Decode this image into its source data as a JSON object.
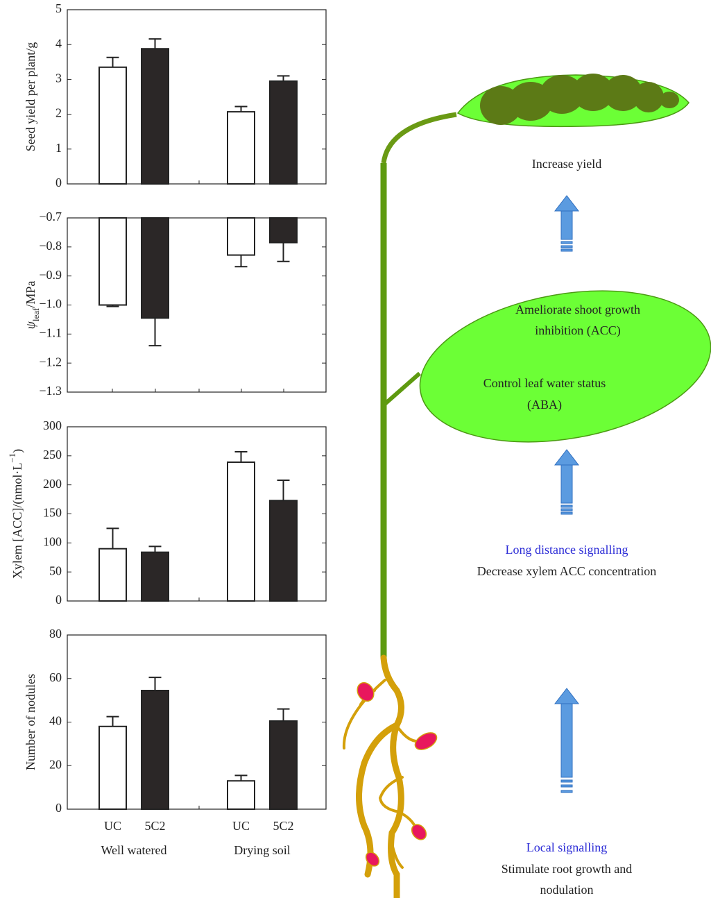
{
  "chart_data": [
    {
      "type": "bar",
      "ylabel": [
        {
          "text": "Seed yield per plant/g"
        }
      ],
      "ylim": [
        0,
        5
      ],
      "yticks": [
        0,
        1,
        2,
        3,
        4,
        5
      ],
      "series": [
        {
          "color": "#ffffff",
          "values": [
            3.35,
            2.07
          ],
          "errors": [
            0.28,
            0.15
          ]
        },
        {
          "color": "#2b2727",
          "values": [
            3.88,
            2.95
          ],
          "errors": [
            0.28,
            0.15
          ]
        }
      ]
    },
    {
      "type": "bar",
      "ylabel": [
        {
          "text": "ψ",
          "style": "italic"
        },
        {
          "text": "leaf",
          "style": "sub"
        },
        {
          "text": "/MPa"
        }
      ],
      "ylim": [
        -1.3,
        -0.7
      ],
      "yticks": [
        {
          "value": -0.7,
          "label": "−0.7"
        },
        {
          "value": -0.8,
          "label": "−0.8"
        },
        {
          "value": -0.9,
          "label": "−0.9"
        },
        {
          "value": -1.0,
          "label": "−1.0"
        },
        {
          "value": -1.1,
          "label": "−1.1"
        },
        {
          "value": -1.2,
          "label": "−1.2"
        },
        {
          "value": -1.3,
          "label": "−1.3"
        }
      ],
      "series": [
        {
          "color": "#ffffff",
          "values": [
            -1.0,
            -0.828
          ],
          "errors": [
            0.005,
            0.04
          ]
        },
        {
          "color": "#2b2727",
          "values": [
            -1.045,
            -0.785
          ],
          "errors": [
            0.095,
            0.065
          ]
        }
      ]
    },
    {
      "type": "bar",
      "ylabel": [
        {
          "text": "Xylem [ACC]/(nmol·L"
        },
        {
          "text": "−1",
          "style": "sup"
        },
        {
          "text": ")"
        }
      ],
      "ylim": [
        0,
        300
      ],
      "yticks": [
        0,
        50,
        100,
        150,
        200,
        250,
        300
      ],
      "series": [
        {
          "color": "#ffffff",
          "values": [
            90,
            239
          ],
          "errors": [
            35,
            18
          ]
        },
        {
          "color": "#2b2727",
          "values": [
            84,
            173
          ],
          "errors": [
            10,
            35
          ]
        }
      ]
    },
    {
      "type": "bar",
      "ylabel": [
        {
          "text": "Number of nodules"
        }
      ],
      "categories": [
        "Well watered",
        "Drying soil"
      ],
      "ylim": [
        0,
        80
      ],
      "yticks": [
        0,
        20,
        40,
        60,
        80
      ],
      "series": [
        {
          "name": "UC",
          "color": "#ffffff",
          "values": [
            38,
            13
          ],
          "errors": [
            4.5,
            2.5
          ]
        },
        {
          "name": "5C2",
          "color": "#2b2727",
          "values": [
            54.5,
            40.5
          ],
          "errors": [
            6,
            5.5
          ]
        }
      ]
    }
  ],
  "diagram": {
    "labels": [
      {
        "text": "Increase yield"
      },
      {
        "text": "Ameliorate shoot growth"
      },
      {
        "text": "inhibition (ACC)"
      },
      {
        "text": "Control leaf water status"
      },
      {
        "text": "(ABA)"
      },
      {
        "text": "Long distance signalling",
        "color": "#2b2bd6"
      },
      {
        "text": "Decrease xylem ACC concentration"
      },
      {
        "text": "Local signalling",
        "color": "#2b2bd6"
      },
      {
        "text": "Stimulate root growth and"
      },
      {
        "text": "nodulation"
      }
    ]
  }
}
